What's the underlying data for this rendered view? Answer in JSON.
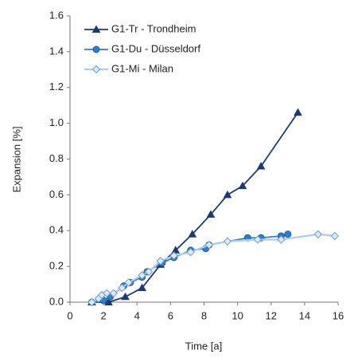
{
  "chart_data": {
    "type": "line",
    "x_label": "Time [a]",
    "y_label": "Expansion [%]",
    "xlim": [
      0,
      16
    ],
    "xticks": [
      0,
      2,
      4,
      6,
      8,
      10,
      12,
      14,
      16
    ],
    "ylim": [
      0,
      1.6
    ],
    "yticks": [
      {
        "value": 0,
        "label": "0.0"
      },
      {
        "value": 0.2,
        "label": "0.2"
      },
      {
        "value": 0.4,
        "label": "0.4"
      },
      {
        "value": 0.6,
        "label": "0.6"
      },
      {
        "value": 0.8,
        "label": "0.8"
      },
      {
        "value": 1.0,
        "label": "1.0"
      },
      {
        "value": 1.2,
        "label": "1.2"
      },
      {
        "value": 1.4,
        "label": "1.4"
      },
      {
        "value": 1.6,
        "label": "1.6"
      }
    ],
    "grid": false,
    "legend": "upper-left",
    "series": [
      {
        "name": "G1-Tr - Trondheim",
        "color": "#1c3b75",
        "marker": "triangle",
        "x": [
          1.3,
          2.3,
          3.3,
          4.3,
          5.4,
          6.3,
          7.3,
          8.4,
          9.4,
          10.3,
          11.4,
          13.6
        ],
        "values": [
          0,
          0,
          0.03,
          0.08,
          0.21,
          0.29,
          0.38,
          0.49,
          0.6,
          0.65,
          0.76,
          1.06
        ]
      },
      {
        "name": "G1-Du - Düsseldorf",
        "color": "#2f7fd0",
        "marker": "circle",
        "x": [
          1.3,
          2.0,
          2.4,
          3.2,
          3.6,
          4.3,
          4.6,
          5.5,
          6.2,
          7.2,
          8.1,
          8.3,
          10.6,
          11.4,
          12.6,
          13.0
        ],
        "values": [
          0,
          0.01,
          0.03,
          0.09,
          0.11,
          0.14,
          0.17,
          0.22,
          0.25,
          0.29,
          0.3,
          0.32,
          0.36,
          0.36,
          0.37,
          0.38
        ]
      },
      {
        "name": "G1-Mi - Milan",
        "color": "#a8cdee",
        "marker": "diamond",
        "x": [
          1.3,
          1.7,
          1.9,
          2.2,
          2.6,
          3.1,
          3.5,
          4.3,
          4.7,
          5.4,
          6.2,
          7.2,
          8.3,
          9.4,
          11.2,
          12.6,
          14.8,
          15.8
        ],
        "values": [
          0,
          0.02,
          0.04,
          0.05,
          0.05,
          0.08,
          0.11,
          0.15,
          0.17,
          0.23,
          0.26,
          0.28,
          0.32,
          0.34,
          0.35,
          0.35,
          0.38,
          0.37
        ]
      }
    ]
  }
}
